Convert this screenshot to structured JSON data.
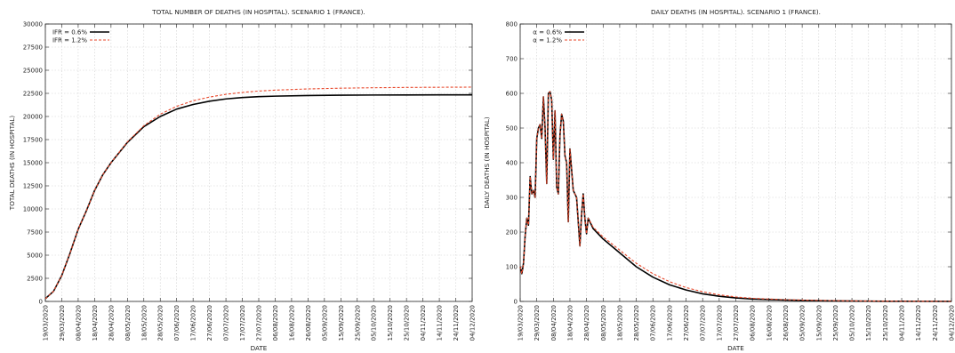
{
  "chart_data": [
    {
      "type": "line",
      "title": "TOTAL NUMBER OF DEATHS (IN HOSPITAL). SCENARIO 1 (FRANCE).",
      "xlabel": "DATE",
      "ylabel": "TOTAL DEATHS (IN HOSPITAL)",
      "ylim": [
        0,
        30000
      ],
      "yticks": [
        0,
        2500,
        5000,
        7500,
        10000,
        12500,
        15000,
        17500,
        20000,
        22500,
        25000,
        27500,
        30000
      ],
      "x_tick_labels": [
        "19/03/2020",
        "29/03/2020",
        "08/04/2020",
        "18/04/2020",
        "28/04/2020",
        "08/05/2020",
        "18/05/2020",
        "28/05/2020",
        "07/06/2020",
        "17/06/2020",
        "27/06/2020",
        "07/07/2020",
        "17/07/2020",
        "27/07/2020",
        "06/08/2020",
        "16/08/2020",
        "26/08/2020",
        "05/09/2020",
        "15/09/2020",
        "25/09/2020",
        "05/10/2020",
        "15/10/2020",
        "25/10/2020",
        "04/11/2020",
        "14/11/2020",
        "24/11/2020",
        "04/12/2020"
      ],
      "xlim": [
        "19/03/2020",
        "04/12/2020"
      ],
      "legend_position": "top-left",
      "grid": true,
      "series": [
        {
          "name": "IFR = 0.6%",
          "color": "#000000",
          "style": "solid",
          "x": [
            "19/03/2020",
            "24/03/2020",
            "29/03/2020",
            "03/04/2020",
            "08/04/2020",
            "13/04/2020",
            "18/04/2020",
            "23/04/2020",
            "28/04/2020",
            "08/05/2020",
            "18/05/2020",
            "28/05/2020",
            "07/06/2020",
            "17/06/2020",
            "27/06/2020",
            "07/07/2020",
            "17/07/2020",
            "27/07/2020",
            "06/08/2020",
            "26/08/2020",
            "15/09/2020",
            "05/10/2020",
            "25/10/2020",
            "14/11/2020",
            "04/12/2020"
          ],
          "values": [
            300,
            1100,
            2800,
            5200,
            7800,
            9800,
            12000,
            13700,
            15000,
            17200,
            18900,
            20000,
            20800,
            21300,
            21650,
            21900,
            22050,
            22150,
            22200,
            22270,
            22300,
            22320,
            22330,
            22335,
            22340
          ]
        },
        {
          "name": "IFR = 1.2%",
          "color": "#e8472a",
          "style": "dashed",
          "x": [
            "19/03/2020",
            "24/03/2020",
            "29/03/2020",
            "03/04/2020",
            "08/04/2020",
            "13/04/2020",
            "18/04/2020",
            "23/04/2020",
            "28/04/2020",
            "08/05/2020",
            "18/05/2020",
            "28/05/2020",
            "07/06/2020",
            "17/06/2020",
            "27/06/2020",
            "07/07/2020",
            "17/07/2020",
            "27/07/2020",
            "06/08/2020",
            "26/08/2020",
            "15/09/2020",
            "05/10/2020",
            "25/10/2020",
            "14/11/2020",
            "04/12/2020"
          ],
          "values": [
            300,
            1100,
            2800,
            5200,
            7800,
            9800,
            12000,
            13700,
            15000,
            17250,
            19000,
            20250,
            21100,
            21700,
            22100,
            22400,
            22600,
            22750,
            22850,
            22980,
            23060,
            23110,
            23140,
            23160,
            23175
          ]
        }
      ]
    },
    {
      "type": "line",
      "title": "DAILY DEATHS (IN HOSPITAL). SCENARIO 1 (FRANCE).",
      "xlabel": "DATE",
      "ylabel": "DAILY DEATHS (IN HOSPITAL)",
      "ylim": [
        0,
        800
      ],
      "yticks": [
        0,
        100,
        200,
        300,
        400,
        500,
        600,
        700,
        800
      ],
      "x_tick_labels": [
        "19/03/2020",
        "29/03/2020",
        "08/04/2020",
        "18/04/2020",
        "28/04/2020",
        "08/05/2020",
        "18/05/2020",
        "28/05/2020",
        "07/06/2020",
        "17/06/2020",
        "27/06/2020",
        "07/07/2020",
        "17/07/2020",
        "27/07/2020",
        "06/08/2020",
        "16/08/2020",
        "26/08/2020",
        "05/09/2020",
        "15/09/2020",
        "25/09/2020",
        "05/10/2020",
        "15/10/2020",
        "25/10/2020",
        "04/11/2020",
        "14/11/2020",
        "24/11/2020",
        "04/12/2020"
      ],
      "xlim": [
        "19/03/2020",
        "04/12/2020"
      ],
      "legend_position": "top-left",
      "grid": true,
      "series": [
        {
          "name": "α = 0.6%",
          "color": "#000000",
          "style": "solid",
          "x": [
            "19/03/2020",
            "20/03/2020",
            "21/03/2020",
            "22/03/2020",
            "23/03/2020",
            "24/03/2020",
            "25/03/2020",
            "26/03/2020",
            "27/03/2020",
            "28/03/2020",
            "29/03/2020",
            "30/03/2020",
            "31/03/2020",
            "01/04/2020",
            "02/04/2020",
            "03/04/2020",
            "04/04/2020",
            "05/04/2020",
            "06/04/2020",
            "07/04/2020",
            "08/04/2020",
            "09/04/2020",
            "10/04/2020",
            "11/04/2020",
            "12/04/2020",
            "13/04/2020",
            "14/04/2020",
            "15/04/2020",
            "16/04/2020",
            "17/04/2020",
            "18/04/2020",
            "19/04/2020",
            "20/04/2020",
            "21/04/2020",
            "22/04/2020",
            "23/04/2020",
            "24/04/2020",
            "25/04/2020",
            "26/04/2020",
            "27/04/2020",
            "28/04/2020",
            "29/04/2020",
            "30/04/2020",
            "01/05/2020",
            "02/05/2020",
            "08/05/2020",
            "18/05/2020",
            "28/05/2020",
            "07/06/2020",
            "17/06/2020",
            "27/06/2020",
            "07/07/2020",
            "17/07/2020",
            "27/07/2020",
            "06/08/2020",
            "26/08/2020",
            "15/09/2020",
            "05/10/2020",
            "25/10/2020",
            "14/11/2020",
            "04/12/2020"
          ],
          "values": [
            100,
            80,
            110,
            190,
            240,
            220,
            360,
            310,
            320,
            300,
            470,
            500,
            510,
            470,
            590,
            500,
            340,
            600,
            605,
            580,
            410,
            550,
            330,
            310,
            480,
            540,
            520,
            420,
            400,
            230,
            440,
            380,
            320,
            310,
            300,
            230,
            160,
            250,
            310,
            240,
            195,
            240,
            230,
            220,
            210,
            180,
            140,
            100,
            70,
            48,
            33,
            22,
            15,
            10,
            7,
            4,
            2,
            1,
            0.6,
            0.3,
            0.2
          ]
        },
        {
          "name": "α = 1.2%",
          "color": "#e8472a",
          "style": "dashed",
          "x": [
            "19/03/2020",
            "20/03/2020",
            "21/03/2020",
            "22/03/2020",
            "23/03/2020",
            "24/03/2020",
            "25/03/2020",
            "26/03/2020",
            "27/03/2020",
            "28/03/2020",
            "29/03/2020",
            "30/03/2020",
            "31/03/2020",
            "01/04/2020",
            "02/04/2020",
            "03/04/2020",
            "04/04/2020",
            "05/04/2020",
            "06/04/2020",
            "07/04/2020",
            "08/04/2020",
            "09/04/2020",
            "10/04/2020",
            "11/04/2020",
            "12/04/2020",
            "13/04/2020",
            "14/04/2020",
            "15/04/2020",
            "16/04/2020",
            "17/04/2020",
            "18/04/2020",
            "19/04/2020",
            "20/04/2020",
            "21/04/2020",
            "22/04/2020",
            "23/04/2020",
            "24/04/2020",
            "25/04/2020",
            "26/04/2020",
            "27/04/2020",
            "28/04/2020",
            "29/04/2020",
            "30/04/2020",
            "01/05/2020",
            "02/05/2020",
            "08/05/2020",
            "18/05/2020",
            "28/05/2020",
            "07/06/2020",
            "17/06/2020",
            "27/06/2020",
            "07/07/2020",
            "17/07/2020",
            "27/07/2020",
            "06/08/2020",
            "26/08/2020",
            "15/09/2020",
            "05/10/2020",
            "25/10/2020",
            "14/11/2020",
            "04/12/2020"
          ],
          "values": [
            100,
            80,
            110,
            190,
            240,
            220,
            360,
            310,
            320,
            300,
            470,
            500,
            510,
            470,
            590,
            500,
            340,
            600,
            605,
            580,
            410,
            550,
            330,
            310,
            480,
            540,
            520,
            420,
            400,
            230,
            440,
            380,
            320,
            310,
            300,
            230,
            160,
            250,
            310,
            240,
            195,
            240,
            232,
            223,
            214,
            186,
            148,
            110,
            80,
            57,
            40,
            28,
            19,
            13,
            9,
            5,
            3,
            1.5,
            0.8,
            0.4,
            0.3
          ]
        }
      ]
    }
  ]
}
